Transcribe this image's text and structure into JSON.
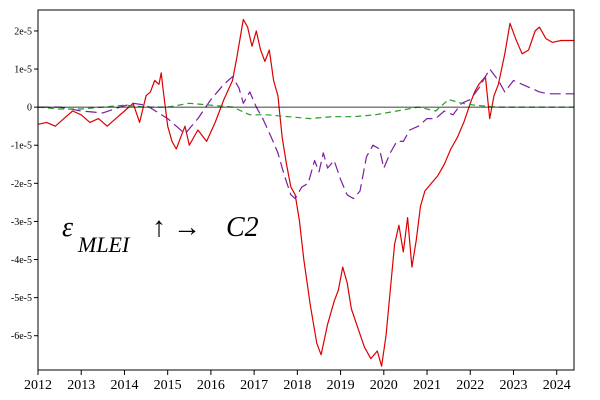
{
  "chart_data": {
    "type": "line",
    "title": "",
    "xlabel": "",
    "ylabel": "",
    "xlim": [
      2012,
      2024.4
    ],
    "ylim": [
      -6.9e-05,
      2.55e-05
    ],
    "grid": false,
    "zero_line": true,
    "x_ticks": [
      2012,
      2013,
      2014,
      2015,
      2016,
      2017,
      2018,
      2019,
      2020,
      2021,
      2022,
      2023,
      2024
    ],
    "x_tick_labels": [
      "2012",
      "2013",
      "2014",
      "2015",
      "2016",
      "2017",
      "2018",
      "2019",
      "2020",
      "2021",
      "2022",
      "2023",
      "2024"
    ],
    "y_ticks": [
      2e-05,
      1e-05,
      0,
      -1e-05,
      -2e-05,
      -3e-05,
      -4e-05,
      -5e-05,
      -6e-05
    ],
    "y_tick_labels": [
      "2e-5",
      "1e-5",
      "0",
      "-1e-5",
      "-2e-5",
      "-3e-5",
      "-4e-5",
      "-5e-5",
      "-6e-5"
    ],
    "annotation": {
      "epsilon": "ε",
      "subscript": "MLEI",
      "arrow": "↑ →",
      "target": "C2"
    },
    "series": [
      {
        "color": "#dd0000",
        "dash": "solid",
        "points": [
          [
            2012.0,
            -4.5e-06
          ],
          [
            2012.2,
            -4e-06
          ],
          [
            2012.4,
            -5e-06
          ],
          [
            2012.6,
            -3e-06
          ],
          [
            2012.8,
            -1e-06
          ],
          [
            2013.0,
            -2e-06
          ],
          [
            2013.2,
            -4e-06
          ],
          [
            2013.4,
            -3e-06
          ],
          [
            2013.6,
            -5e-06
          ],
          [
            2013.8,
            -3e-06
          ],
          [
            2014.0,
            -1e-06
          ],
          [
            2014.2,
            1e-06
          ],
          [
            2014.35,
            -4e-06
          ],
          [
            2014.5,
            3e-06
          ],
          [
            2014.6,
            4e-06
          ],
          [
            2014.7,
            7e-06
          ],
          [
            2014.8,
            6e-06
          ],
          [
            2014.85,
            9e-06
          ],
          [
            2014.9,
            4e-06
          ],
          [
            2015.0,
            -5e-06
          ],
          [
            2015.1,
            -9e-06
          ],
          [
            2015.2,
            -1.1e-05
          ],
          [
            2015.3,
            -8e-06
          ],
          [
            2015.4,
            -5e-06
          ],
          [
            2015.5,
            -1e-05
          ],
          [
            2015.7,
            -6e-06
          ],
          [
            2015.9,
            -9e-06
          ],
          [
            2016.1,
            -4e-06
          ],
          [
            2016.3,
            2e-06
          ],
          [
            2016.5,
            7e-06
          ],
          [
            2016.6,
            1.3e-05
          ],
          [
            2016.75,
            2.3e-05
          ],
          [
            2016.85,
            2.1e-05
          ],
          [
            2016.95,
            1.6e-05
          ],
          [
            2017.05,
            2e-05
          ],
          [
            2017.15,
            1.5e-05
          ],
          [
            2017.25,
            1.2e-05
          ],
          [
            2017.35,
            1.5e-05
          ],
          [
            2017.45,
            7e-06
          ],
          [
            2017.55,
            3e-06
          ],
          [
            2017.65,
            -8e-06
          ],
          [
            2017.75,
            -1.5e-05
          ],
          [
            2017.85,
            -2.1e-05
          ],
          [
            2017.95,
            -2.3e-05
          ],
          [
            2018.05,
            -3e-05
          ],
          [
            2018.15,
            -4e-05
          ],
          [
            2018.3,
            -5.2e-05
          ],
          [
            2018.45,
            -6.2e-05
          ],
          [
            2018.55,
            -6.5e-05
          ],
          [
            2018.7,
            -5.7e-05
          ],
          [
            2018.85,
            -5.1e-05
          ],
          [
            2018.95,
            -4.8e-05
          ],
          [
            2019.05,
            -4.2e-05
          ],
          [
            2019.15,
            -4.6e-05
          ],
          [
            2019.25,
            -5.3e-05
          ],
          [
            2019.4,
            -5.8e-05
          ],
          [
            2019.55,
            -6.3e-05
          ],
          [
            2019.7,
            -6.6e-05
          ],
          [
            2019.85,
            -6.4e-05
          ],
          [
            2019.95,
            -6.8e-05
          ],
          [
            2020.05,
            -6e-05
          ],
          [
            2020.15,
            -4.8e-05
          ],
          [
            2020.25,
            -3.6e-05
          ],
          [
            2020.35,
            -3.1e-05
          ],
          [
            2020.45,
            -3.8e-05
          ],
          [
            2020.55,
            -2.9e-05
          ],
          [
            2020.65,
            -4.2e-05
          ],
          [
            2020.75,
            -3.5e-05
          ],
          [
            2020.85,
            -2.6e-05
          ],
          [
            2020.95,
            -2.2e-05
          ],
          [
            2021.1,
            -2e-05
          ],
          [
            2021.25,
            -1.8e-05
          ],
          [
            2021.4,
            -1.5e-05
          ],
          [
            2021.55,
            -1.1e-05
          ],
          [
            2021.7,
            -8e-06
          ],
          [
            2021.85,
            -4e-06
          ],
          [
            2022.0,
            1e-06
          ],
          [
            2022.1,
            4e-06
          ],
          [
            2022.2,
            6e-06
          ],
          [
            2022.35,
            8e-06
          ],
          [
            2022.45,
            -3e-06
          ],
          [
            2022.55,
            3e-06
          ],
          [
            2022.65,
            6e-06
          ],
          [
            2022.8,
            1.4e-05
          ],
          [
            2022.92,
            2.2e-05
          ],
          [
            2023.05,
            1.8e-05
          ],
          [
            2023.2,
            1.4e-05
          ],
          [
            2023.35,
            1.5e-05
          ],
          [
            2023.5,
            2e-05
          ],
          [
            2023.6,
            2.1e-05
          ],
          [
            2023.75,
            1.8e-05
          ],
          [
            2023.9,
            1.7e-05
          ],
          [
            2024.1,
            1.75e-05
          ],
          [
            2024.4,
            1.75e-05
          ]
        ]
      },
      {
        "color": "#7a1fa0",
        "dash": "long-dash",
        "points": [
          [
            2012.0,
            0.0
          ],
          [
            2012.5,
            0.0
          ],
          [
            2013.0,
            -1e-06
          ],
          [
            2013.5,
            -1.5e-06
          ],
          [
            2013.9,
            0.0
          ],
          [
            2014.2,
            1e-06
          ],
          [
            2014.5,
            5e-07
          ],
          [
            2015.0,
            -3e-06
          ],
          [
            2015.4,
            -7e-06
          ],
          [
            2015.7,
            -3e-06
          ],
          [
            2016.0,
            2e-06
          ],
          [
            2016.3,
            6e-06
          ],
          [
            2016.5,
            8e-06
          ],
          [
            2016.65,
            5e-06
          ],
          [
            2016.75,
            1e-06
          ],
          [
            2016.9,
            4e-06
          ],
          [
            2017.05,
            0.0
          ],
          [
            2017.2,
            -3e-06
          ],
          [
            2017.4,
            -8e-06
          ],
          [
            2017.55,
            -1.2e-05
          ],
          [
            2017.7,
            -1.8e-05
          ],
          [
            2017.85,
            -2.3e-05
          ],
          [
            2017.95,
            -2.4e-05
          ],
          [
            2018.1,
            -2.1e-05
          ],
          [
            2018.25,
            -2e-05
          ],
          [
            2018.4,
            -1.4e-05
          ],
          [
            2018.5,
            -1.7e-05
          ],
          [
            2018.6,
            -1.2e-05
          ],
          [
            2018.7,
            -1.6e-05
          ],
          [
            2018.85,
            -1.4e-05
          ],
          [
            2019.0,
            -1.9e-05
          ],
          [
            2019.15,
            -2.3e-05
          ],
          [
            2019.3,
            -2.4e-05
          ],
          [
            2019.45,
            -2.2e-05
          ],
          [
            2019.6,
            -1.3e-05
          ],
          [
            2019.75,
            -1e-05
          ],
          [
            2019.9,
            -1.1e-05
          ],
          [
            2020.0,
            -1.6e-05
          ],
          [
            2020.15,
            -1.2e-05
          ],
          [
            2020.3,
            -9e-06
          ],
          [
            2020.45,
            -9e-06
          ],
          [
            2020.6,
            -6e-06
          ],
          [
            2020.8,
            -5e-06
          ],
          [
            2021.0,
            -3e-06
          ],
          [
            2021.2,
            -3e-06
          ],
          [
            2021.4,
            -1e-06
          ],
          [
            2021.6,
            -2e-06
          ],
          [
            2021.8,
            1e-06
          ],
          [
            2022.0,
            2e-06
          ],
          [
            2022.2,
            5e-06
          ],
          [
            2022.45,
            1e-05
          ],
          [
            2022.65,
            7e-06
          ],
          [
            2022.8,
            4e-06
          ],
          [
            2023.0,
            7e-06
          ],
          [
            2023.2,
            6e-06
          ],
          [
            2023.4,
            5e-06
          ],
          [
            2023.6,
            4e-06
          ],
          [
            2023.8,
            3.5e-06
          ],
          [
            2024.0,
            3.5e-06
          ],
          [
            2024.4,
            3.5e-06
          ]
        ]
      },
      {
        "color": "#2a9a2a",
        "dash": "dash",
        "points": [
          [
            2012.0,
            0.0
          ],
          [
            2012.5,
            -5e-07
          ],
          [
            2013.0,
            -5e-07
          ],
          [
            2013.5,
            0.0
          ],
          [
            2014.0,
            5e-07
          ],
          [
            2014.5,
            0.0
          ],
          [
            2015.0,
            0.0
          ],
          [
            2015.5,
            1e-06
          ],
          [
            2016.0,
            5e-07
          ],
          [
            2016.5,
            0.0
          ],
          [
            2016.9,
            -2e-06
          ],
          [
            2017.3,
            -2e-06
          ],
          [
            2017.8,
            -2.5e-06
          ],
          [
            2018.3,
            -3e-06
          ],
          [
            2018.8,
            -2.5e-06
          ],
          [
            2019.3,
            -2.5e-06
          ],
          [
            2019.8,
            -2e-06
          ],
          [
            2020.3,
            -1e-06
          ],
          [
            2020.8,
            0.0
          ],
          [
            2021.2,
            -1e-06
          ],
          [
            2021.5,
            2e-06
          ],
          [
            2021.8,
            1e-06
          ],
          [
            2022.1,
            5e-07
          ],
          [
            2022.6,
            0.0
          ],
          [
            2023.0,
            0.0
          ],
          [
            2023.5,
            0.0
          ],
          [
            2024.0,
            0.0
          ],
          [
            2024.4,
            0.0
          ]
        ]
      }
    ]
  }
}
